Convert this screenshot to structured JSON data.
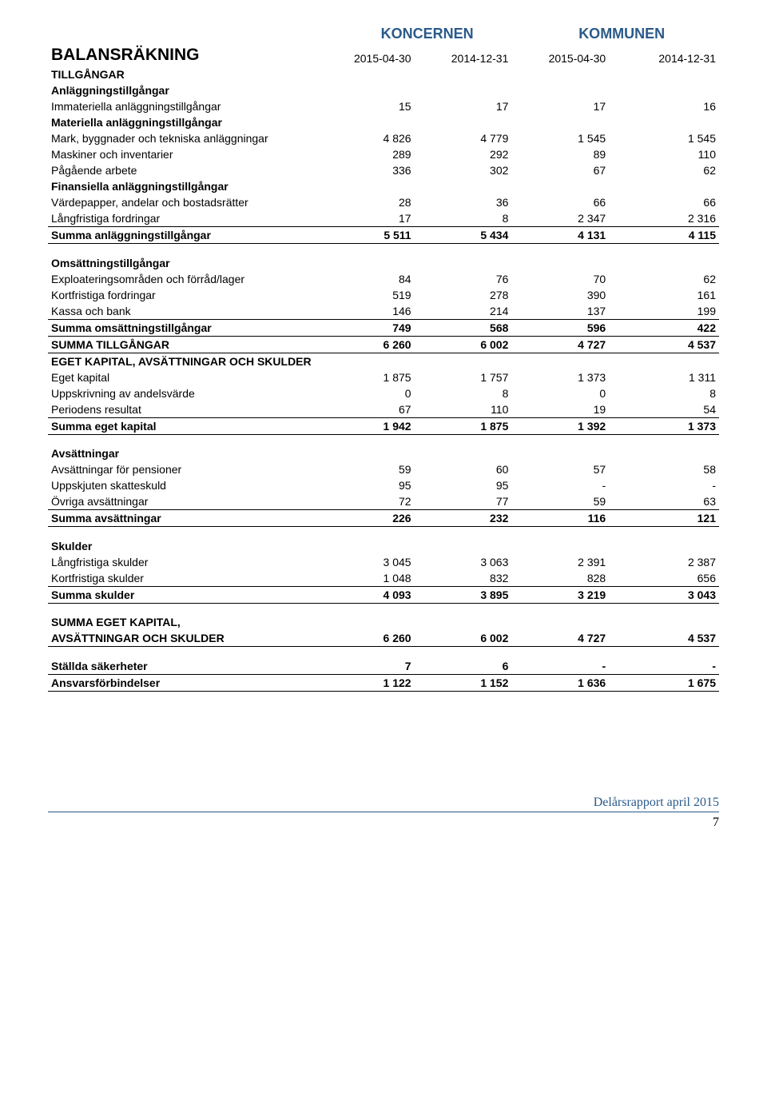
{
  "title": "BALANSRÄKNING",
  "groupHeaders": {
    "g1": "KONCERNEN",
    "g2": "KOMMUNEN"
  },
  "colHeaders": {
    "c1": "2015-04-30",
    "c2": "2014-12-31",
    "c3": "2015-04-30",
    "c4": "2014-12-31"
  },
  "colors": {
    "accent": "#2a5a8a"
  },
  "rows": [
    {
      "type": "heading",
      "label": "TILLGÅNGAR"
    },
    {
      "type": "heading",
      "label": "Anläggningstillgångar"
    },
    {
      "type": "data",
      "label": "Immateriella anläggningstillgångar",
      "v": [
        "15",
        "17",
        "17",
        "16"
      ]
    },
    {
      "type": "heading",
      "label": "Materiella anläggningstillgångar"
    },
    {
      "type": "data",
      "label": "Mark, byggnader och tekniska anläggningar",
      "v": [
        "4 826",
        "4 779",
        "1 545",
        "1 545"
      ]
    },
    {
      "type": "data",
      "label": "Maskiner och inventarier",
      "v": [
        "289",
        "292",
        "89",
        "110"
      ]
    },
    {
      "type": "data",
      "label": "Pågående arbete",
      "v": [
        "336",
        "302",
        "67",
        "62"
      ]
    },
    {
      "type": "heading",
      "label": "Finansiella anläggningstillgångar"
    },
    {
      "type": "data",
      "label": "Värdepapper, andelar och bostadsrätter",
      "v": [
        "28",
        "36",
        "66",
        "66"
      ]
    },
    {
      "type": "data",
      "label": "Långfristiga fordringar",
      "v": [
        "17",
        "8",
        "2 347",
        "2 316"
      ]
    },
    {
      "type": "sum",
      "label": "Summa anläggningstillgångar",
      "v": [
        "5 511",
        "5 434",
        "4 131",
        "4 115"
      ],
      "lines": "tb"
    },
    {
      "type": "spacer"
    },
    {
      "type": "heading",
      "label": "Omsättningstillgångar"
    },
    {
      "type": "data",
      "label": "Exploateringsområden och förråd/lager",
      "v": [
        "84",
        "76",
        "70",
        "62"
      ]
    },
    {
      "type": "data",
      "label": "Kortfristiga fordringar",
      "v": [
        "519",
        "278",
        "390",
        "161"
      ]
    },
    {
      "type": "data",
      "label": "Kassa och bank",
      "v": [
        "146",
        "214",
        "137",
        "199"
      ]
    },
    {
      "type": "sum",
      "label": "Summa omsättningstillgångar",
      "v": [
        "749",
        "568",
        "596",
        "422"
      ],
      "lines": "t"
    },
    {
      "type": "sum",
      "label": "SUMMA TILLGÅNGAR",
      "v": [
        "6 260",
        "6 002",
        "4 727",
        "4 537"
      ],
      "lines": "tb"
    },
    {
      "type": "heading",
      "label": "EGET KAPITAL, AVSÄTTNINGAR OCH SKULDER"
    },
    {
      "type": "data",
      "label": "Eget kapital",
      "v": [
        "1 875",
        "1 757",
        "1 373",
        "1 311"
      ]
    },
    {
      "type": "data",
      "label": "Uppskrivning av andelsvärde",
      "v": [
        "0",
        "8",
        "0",
        "8"
      ]
    },
    {
      "type": "data",
      "label": "Periodens resultat",
      "v": [
        "67",
        "110",
        "19",
        "54"
      ]
    },
    {
      "type": "sum",
      "label": "Summa eget kapital",
      "v": [
        "1 942",
        "1 875",
        "1 392",
        "1 373"
      ],
      "lines": "tb"
    },
    {
      "type": "spacer"
    },
    {
      "type": "heading",
      "label": "Avsättningar"
    },
    {
      "type": "data",
      "label": "Avsättningar för pensioner",
      "v": [
        "59",
        "60",
        "57",
        "58"
      ]
    },
    {
      "type": "data",
      "label": "Uppskjuten skatteskuld",
      "v": [
        "95",
        "95",
        "-",
        "-"
      ]
    },
    {
      "type": "data",
      "label": "Övriga avsättningar",
      "v": [
        "72",
        "77",
        "59",
        "63"
      ]
    },
    {
      "type": "sum",
      "label": "Summa avsättningar",
      "v": [
        "226",
        "232",
        "116",
        "121"
      ],
      "lines": "tb"
    },
    {
      "type": "spacer"
    },
    {
      "type": "heading",
      "label": "Skulder"
    },
    {
      "type": "data",
      "label": "Långfristiga skulder",
      "v": [
        "3 045",
        "3 063",
        "2 391",
        "2 387"
      ]
    },
    {
      "type": "data",
      "label": "Kortfristiga skulder",
      "v": [
        "1 048",
        "832",
        "828",
        "656"
      ]
    },
    {
      "type": "sum",
      "label": "Summa skulder",
      "v": [
        "4 093",
        "3 895",
        "3 219",
        "3 043"
      ],
      "lines": "tb"
    },
    {
      "type": "spacer"
    },
    {
      "type": "heading",
      "label": "SUMMA EGET KAPITAL,"
    },
    {
      "type": "sum",
      "label": "AVSÄTTNINGAR OCH SKULDER",
      "v": [
        "6 260",
        "6 002",
        "4 727",
        "4 537"
      ],
      "lines": "b"
    },
    {
      "type": "spacer"
    },
    {
      "type": "sum",
      "label": "Ställda säkerheter",
      "v": [
        "7",
        "6",
        "-",
        "-"
      ],
      "lines": "b"
    },
    {
      "type": "sum",
      "label": "Ansvarsförbindelser",
      "v": [
        "1 122",
        "1 152",
        "1 636",
        "1 675"
      ],
      "lines": "b"
    }
  ],
  "footer": {
    "text": "Delårsrapport april 2015",
    "page": "7"
  }
}
